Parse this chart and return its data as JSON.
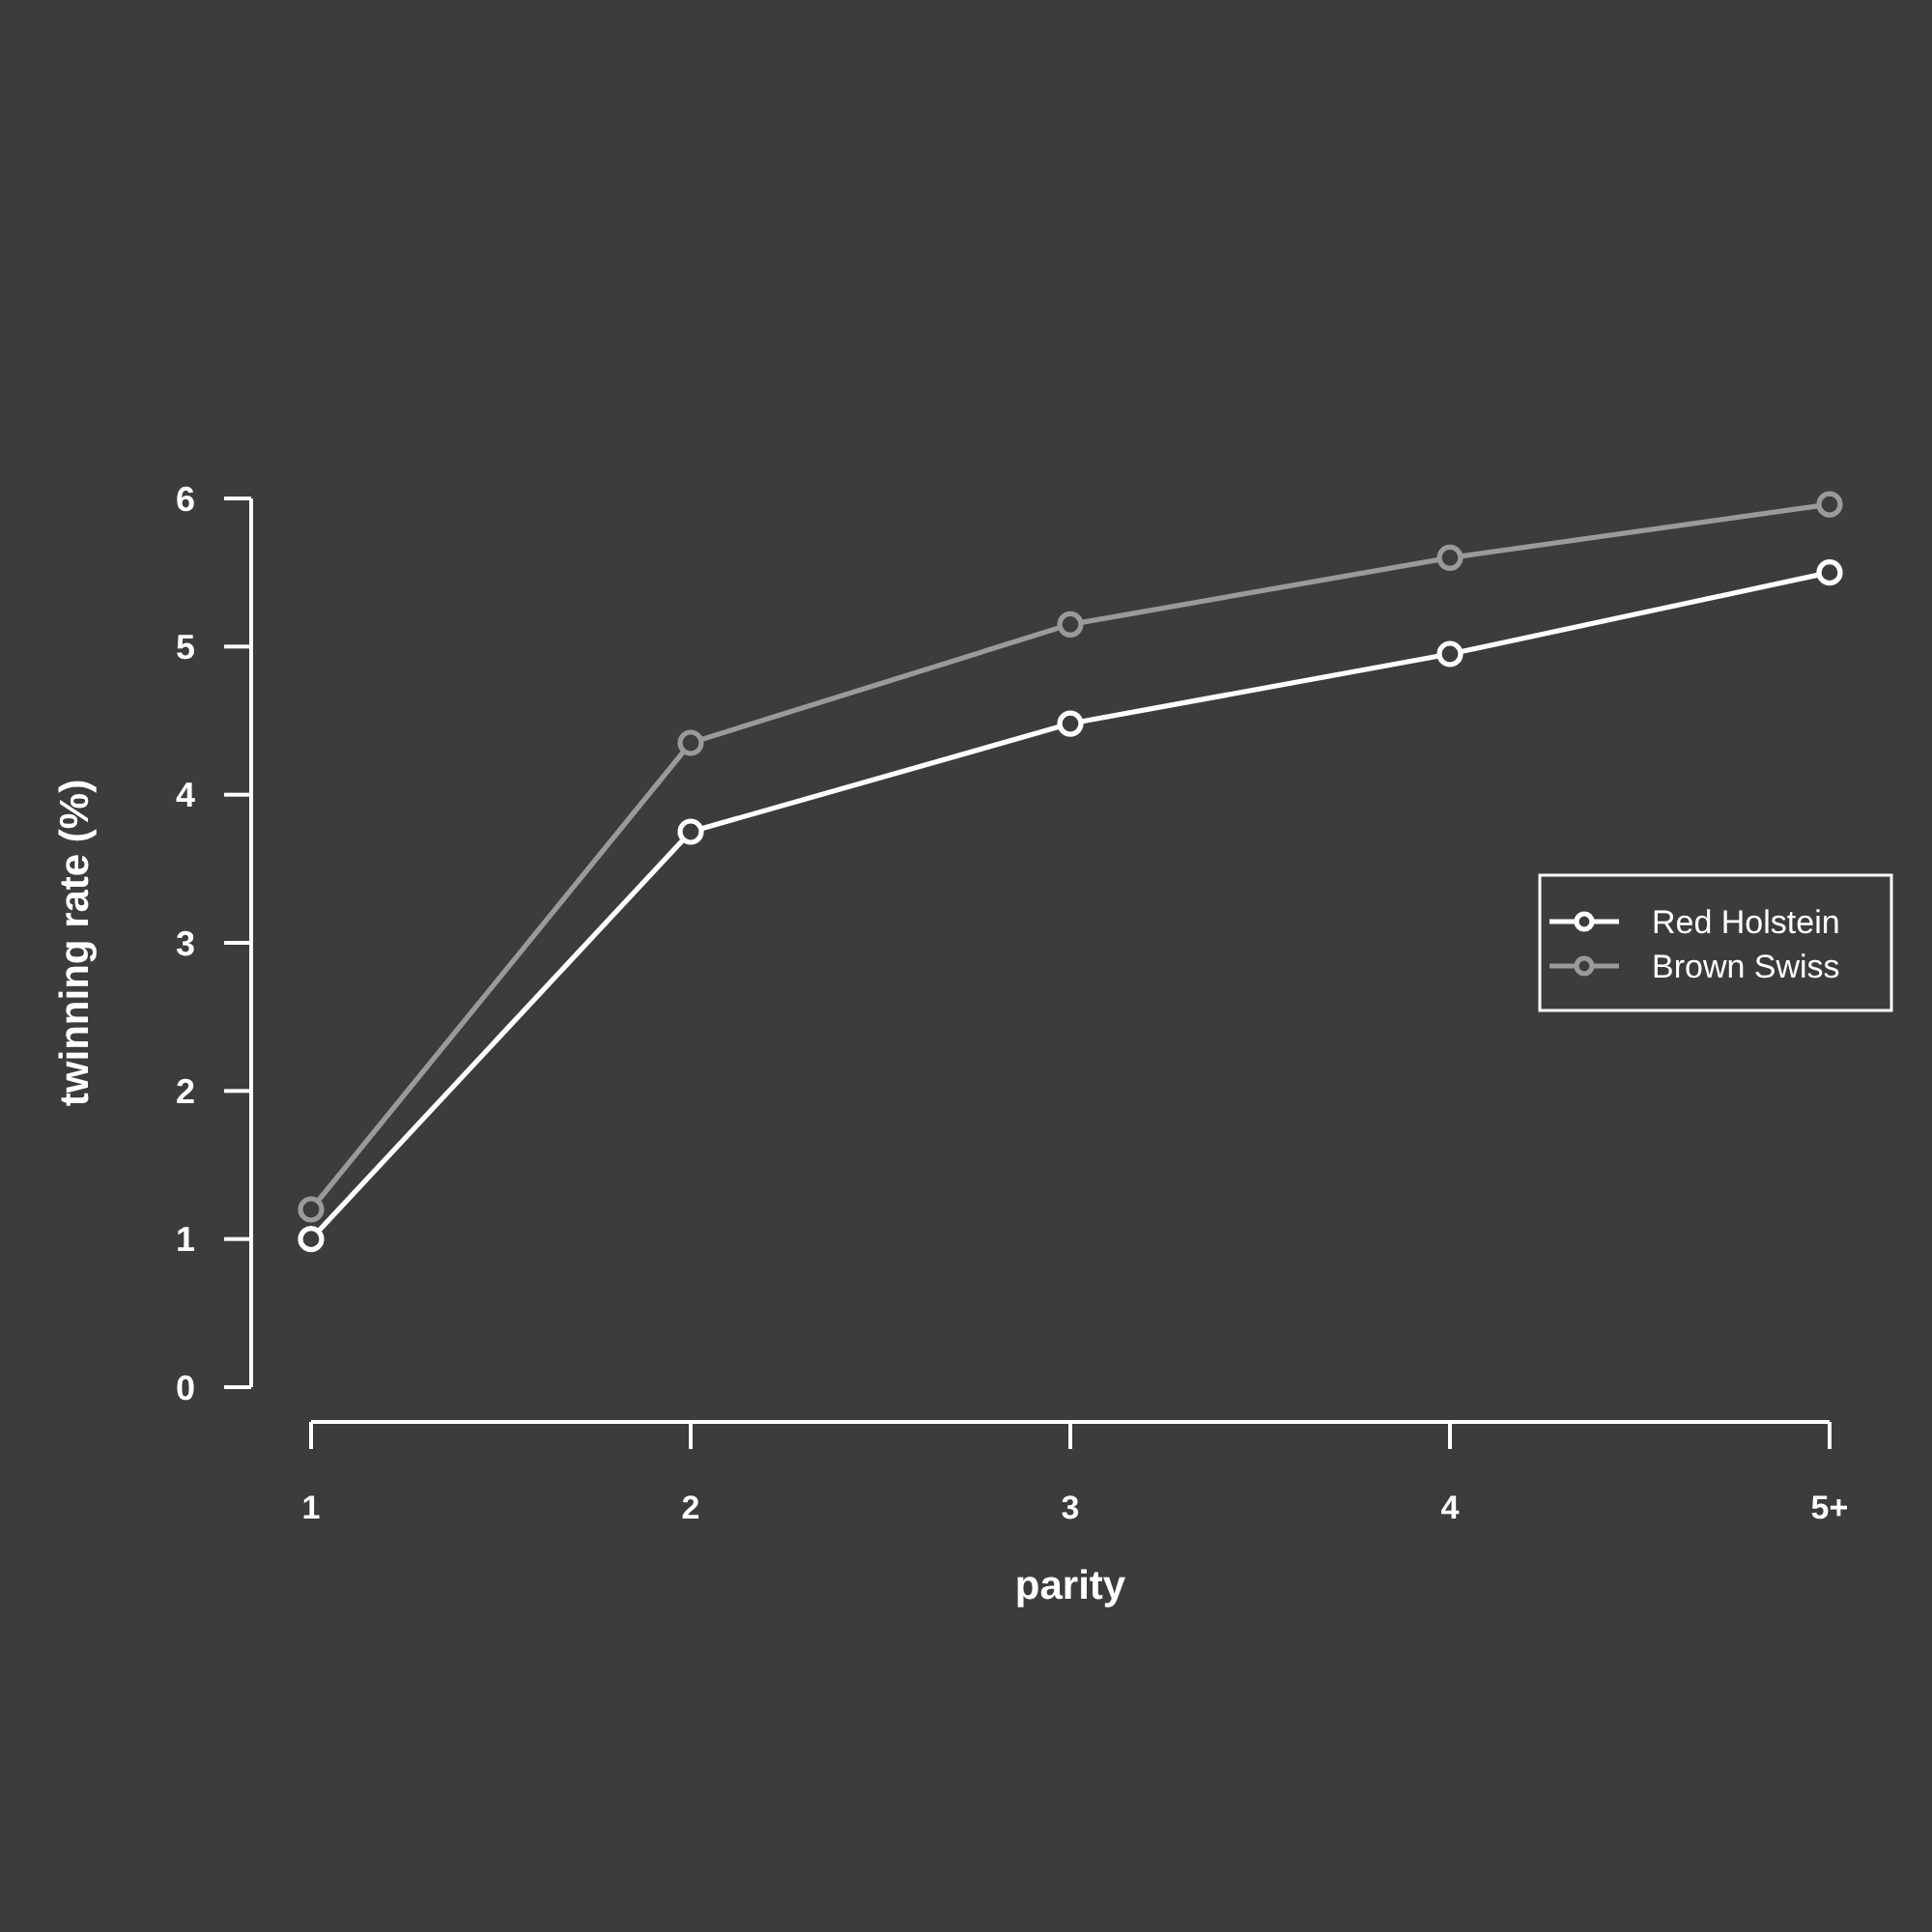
{
  "chart_data": {
    "type": "line",
    "xlabel": "parity",
    "ylabel": "twinning rate (%)",
    "categories": [
      "1",
      "2",
      "3",
      "4",
      "5+"
    ],
    "series": [
      {
        "name": "Red Holstein",
        "color": "#ffffff",
        "values": [
          1.0,
          3.75,
          4.48,
          4.95,
          5.5
        ]
      },
      {
        "name": "Brown Swiss",
        "color": "#9a9a9a",
        "values": [
          1.2,
          4.35,
          5.15,
          5.6,
          5.96
        ]
      }
    ],
    "ylim": [
      0,
      6
    ],
    "yticks": [
      0,
      1,
      2,
      3,
      4,
      5,
      6
    ],
    "grid": false,
    "legend": "right",
    "marker": "circle",
    "line_style": "solid"
  }
}
